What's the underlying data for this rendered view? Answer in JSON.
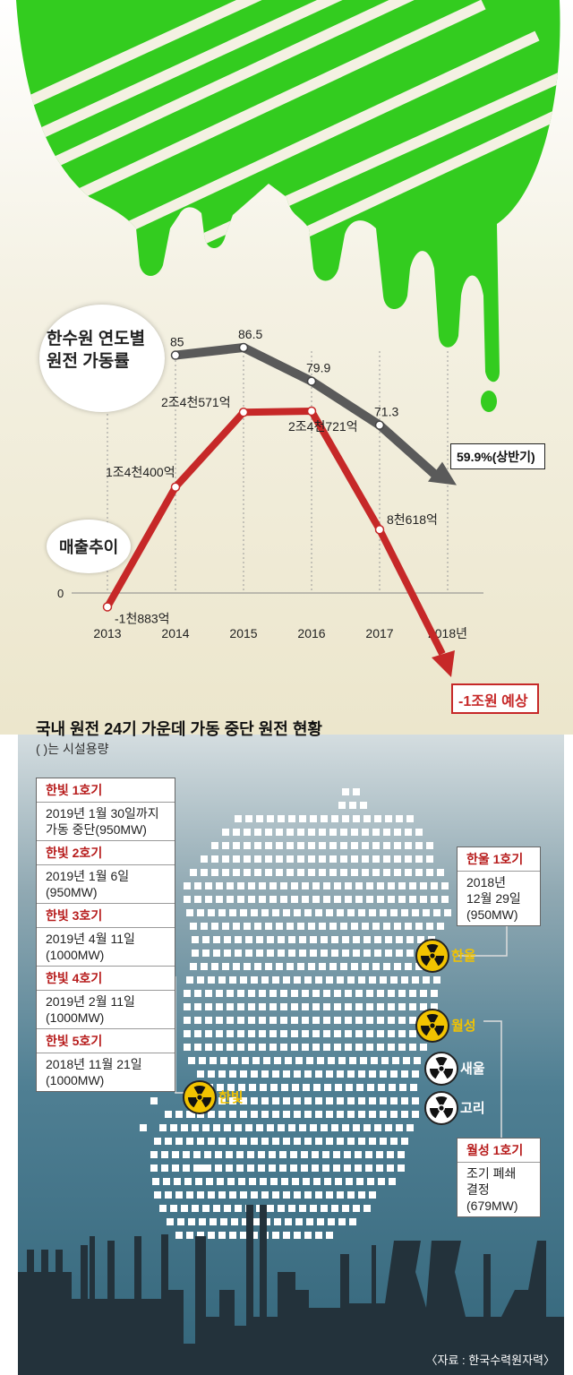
{
  "chart_data": [
    {
      "type": "line",
      "title": "한수원 연도별 원전 가동률",
      "categories": [
        "2013",
        "2014",
        "2015",
        "2016",
        "2017",
        "2018년"
      ],
      "series": [
        {
          "name": "한수원 연도별 원전 가동률",
          "x": [
            "2014",
            "2015",
            "2016",
            "2017",
            "2018년"
          ],
          "values": [
            85,
            86.5,
            79.9,
            71.3,
            59.9
          ],
          "labels": [
            "85",
            "86.5",
            "79.9",
            "71.3",
            "59.9%(상반기)"
          ],
          "color": "#555555"
        },
        {
          "name": "매출추이",
          "x": [
            "2013",
            "2014",
            "2015",
            "2016",
            "2017",
            "2018년"
          ],
          "values": [
            -1883,
            14400,
            24571,
            24721,
            8618,
            -10000
          ],
          "labels": [
            "-1천883억",
            "1조4천400억",
            "2조4천571억",
            "2조4천721억",
            "8천618억",
            "-1조원 예상"
          ],
          "color": "#c62828"
        }
      ],
      "zero_label": "0"
    }
  ],
  "map": {
    "title": "국내 원전 24기 가운데 가동 중단 원전 현황",
    "subtitle": "( )는 시설용량",
    "source": "〈자료 : 한국수력원자력〉",
    "left_boxes": [
      {
        "head": "한빛 1호기",
        "body": [
          "2019년 1월 30일까지",
          "가동 중단(950MW)"
        ]
      },
      {
        "head": "한빛 2호기",
        "body": [
          "2019년 1월 6일",
          "(950MW)"
        ]
      },
      {
        "head": "한빛 3호기",
        "body": [
          "2019년 4월 11일",
          "(1000MW)"
        ]
      },
      {
        "head": "한빛 4호기",
        "body": [
          "2019년 2월 11일",
          "(1000MW)"
        ]
      },
      {
        "head": "한빛 5호기",
        "body": [
          "2018년 11월 21일",
          "(1000MW)"
        ]
      }
    ],
    "hanul_box": {
      "head": "한울 1호기",
      "body": [
        "2018년",
        "12월 29일",
        "(950MW)"
      ]
    },
    "wolsong_box": {
      "head": "월성 1호기",
      "body": [
        "조기 폐쇄",
        "결정",
        "(679MW)"
      ]
    },
    "sites": {
      "hanul": {
        "label": "한울",
        "status": "partial",
        "color": "#f2c300"
      },
      "wolsong": {
        "label": "월성",
        "status": "partial",
        "color": "#f2c300"
      },
      "saeul": {
        "label": "새울",
        "status": "normal",
        "color": "#ffffff"
      },
      "kori": {
        "label": "고리",
        "status": "normal",
        "color": "#ffffff"
      },
      "hanbit": {
        "label": "한빛",
        "status": "partial",
        "color": "#f2c300"
      }
    },
    "icons": {
      "site_marker": "radiation-icon"
    }
  }
}
